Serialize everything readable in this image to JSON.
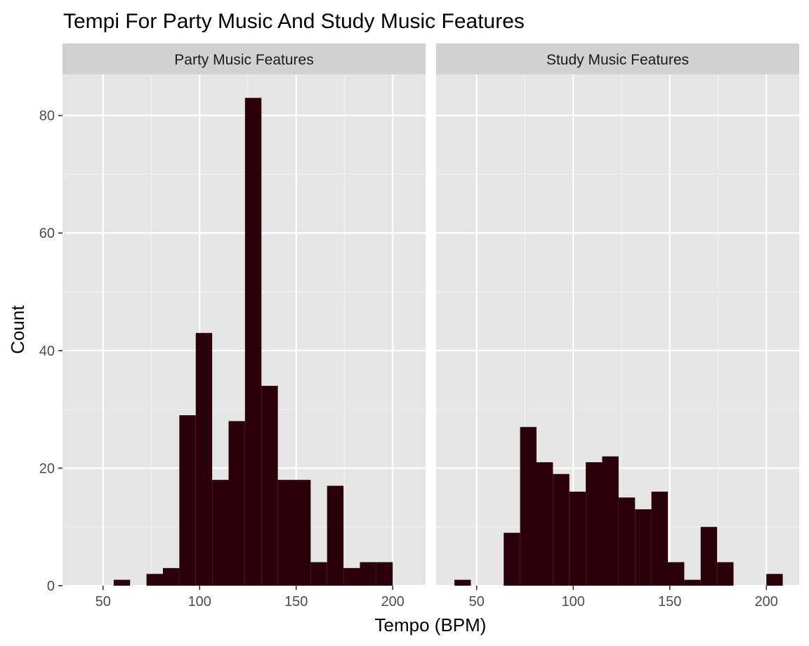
{
  "chart_data": {
    "type": "bar",
    "subtype": "faceted-histogram",
    "title": "Tempi For Party Music And Study Music Features",
    "xlabel": "Tempo (BPM)",
    "ylabel": "Count",
    "bin_width": 8.5,
    "ylim": [
      0,
      87
    ],
    "y_ticks": [
      0,
      20,
      40,
      60,
      80
    ],
    "y_tick_labels": [
      "0",
      "20",
      "40",
      "60",
      "80"
    ],
    "grid": true,
    "legend": "none",
    "fill_color": "#2a000a",
    "panel_bg": "#e5e5e5",
    "strip_bg": "#d1d1d1",
    "facets": [
      {
        "name": "Party Music Features",
        "xlim": [
          29,
          217
        ],
        "x_ticks": [
          50,
          100,
          150,
          200
        ],
        "x_tick_labels": [
          "50",
          "100",
          "150",
          "200"
        ],
        "bins": [
          {
            "x0": 55.5,
            "x1": 64,
            "count": 1
          },
          {
            "x0": 72.5,
            "x1": 81,
            "count": 2
          },
          {
            "x0": 81,
            "x1": 89.5,
            "count": 3
          },
          {
            "x0": 89.5,
            "x1": 98,
            "count": 29
          },
          {
            "x0": 98,
            "x1": 106.5,
            "count": 43
          },
          {
            "x0": 106.5,
            "x1": 115,
            "count": 18
          },
          {
            "x0": 115,
            "x1": 123.5,
            "count": 28
          },
          {
            "x0": 123.5,
            "x1": 132,
            "count": 83
          },
          {
            "x0": 132,
            "x1": 140.5,
            "count": 34
          },
          {
            "x0": 140.5,
            "x1": 149,
            "count": 18
          },
          {
            "x0": 149,
            "x1": 157.5,
            "count": 18
          },
          {
            "x0": 157.5,
            "x1": 166,
            "count": 4
          },
          {
            "x0": 166,
            "x1": 174.5,
            "count": 17
          },
          {
            "x0": 174.5,
            "x1": 183,
            "count": 3
          },
          {
            "x0": 183,
            "x1": 191.5,
            "count": 4
          },
          {
            "x0": 191.5,
            "x1": 200,
            "count": 4
          }
        ]
      },
      {
        "name": "Study Music Features",
        "xlim": [
          29,
          217
        ],
        "x_ticks": [
          50,
          100,
          150,
          200
        ],
        "x_tick_labels": [
          "50",
          "100",
          "150",
          "200"
        ],
        "bins": [
          {
            "x0": 38.5,
            "x1": 47,
            "count": 1
          },
          {
            "x0": 64,
            "x1": 72.5,
            "count": 9
          },
          {
            "x0": 72.5,
            "x1": 81,
            "count": 27
          },
          {
            "x0": 81,
            "x1": 89.5,
            "count": 21
          },
          {
            "x0": 89.5,
            "x1": 98,
            "count": 19
          },
          {
            "x0": 98,
            "x1": 106.5,
            "count": 16
          },
          {
            "x0": 106.5,
            "x1": 115,
            "count": 21
          },
          {
            "x0": 115,
            "x1": 123.5,
            "count": 22
          },
          {
            "x0": 123.5,
            "x1": 132,
            "count": 15
          },
          {
            "x0": 132,
            "x1": 140.5,
            "count": 13
          },
          {
            "x0": 140.5,
            "x1": 149,
            "count": 16
          },
          {
            "x0": 149,
            "x1": 157.5,
            "count": 4
          },
          {
            "x0": 157.5,
            "x1": 166,
            "count": 1
          },
          {
            "x0": 166,
            "x1": 174.5,
            "count": 10
          },
          {
            "x0": 174.5,
            "x1": 183,
            "count": 4
          },
          {
            "x0": 200,
            "x1": 208.5,
            "count": 2
          }
        ]
      }
    ]
  }
}
